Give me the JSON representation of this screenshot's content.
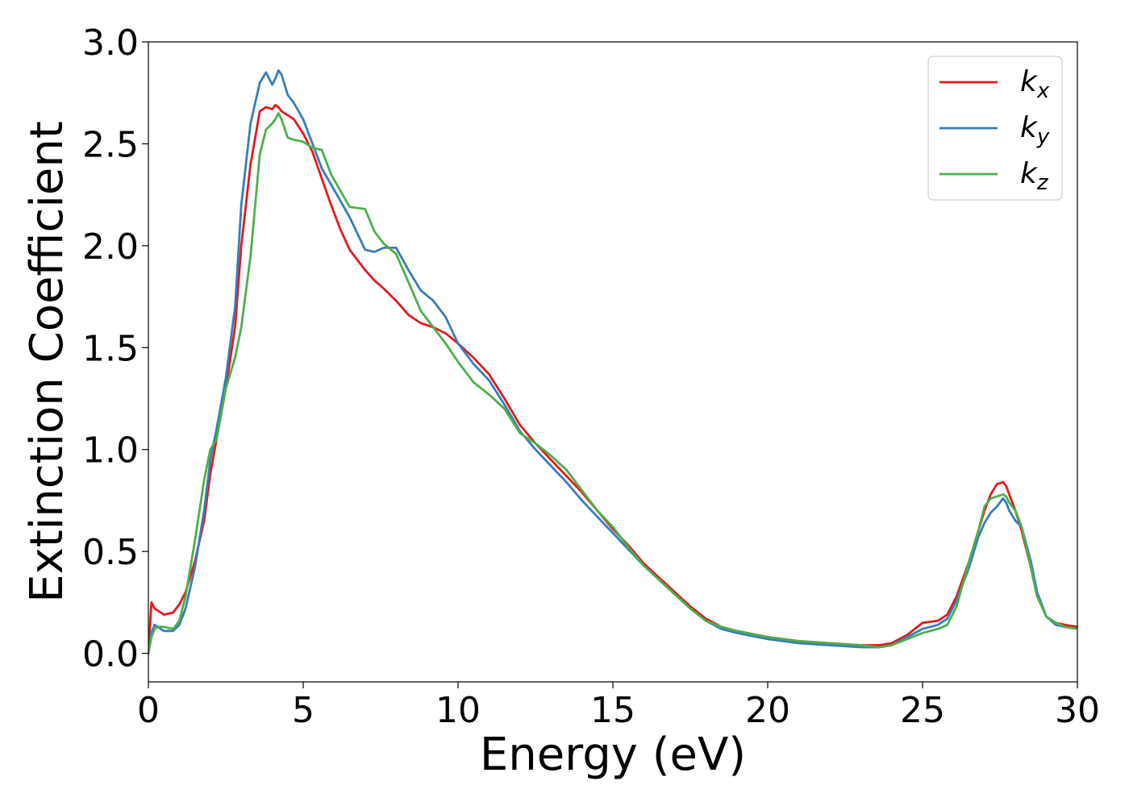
{
  "chart_data": {
    "type": "line",
    "title": "",
    "xlabel": "Energy (eV)",
    "ylabel": "Extinction Coefficient",
    "xlim": [
      0,
      30
    ],
    "ylim": [
      -0.14,
      3.0
    ],
    "xticks": [
      0,
      5,
      10,
      15,
      20,
      25,
      30
    ],
    "xtick_labels": [
      "0",
      "5",
      "10",
      "15",
      "20",
      "25",
      "30"
    ],
    "yticks": [
      0.0,
      0.5,
      1.0,
      1.5,
      2.0,
      2.5,
      3.0
    ],
    "ytick_labels": [
      "0.0",
      "0.5",
      "1.0",
      "1.5",
      "2.0",
      "2.5",
      "3.0"
    ],
    "grid": false,
    "legend_position": "top-right",
    "series": [
      {
        "name": "k",
        "subscript": "x",
        "color": "#e41a1c",
        "x": [
          0,
          0.1,
          0.2,
          0.3,
          0.5,
          0.8,
          1.0,
          1.2,
          1.5,
          1.8,
          2.0,
          2.2,
          2.5,
          2.8,
          3.0,
          3.3,
          3.6,
          3.8,
          4.0,
          4.1,
          4.2,
          4.3,
          4.5,
          4.7,
          5.0,
          5.3,
          5.6,
          5.9,
          6.2,
          6.5,
          7.0,
          7.3,
          7.6,
          8.0,
          8.4,
          8.8,
          9.2,
          9.6,
          10.0,
          10.5,
          11.0,
          11.5,
          12.0,
          12.5,
          13.0,
          13.5,
          14.0,
          14.5,
          15.0,
          15.5,
          16.0,
          16.5,
          17.0,
          17.5,
          18.0,
          18.5,
          19.0,
          20.0,
          21.0,
          22.0,
          23.0,
          23.6,
          24.0,
          24.5,
          25.0,
          25.5,
          25.8,
          26.1,
          26.5,
          26.8,
          27.0,
          27.2,
          27.4,
          27.6,
          27.7,
          27.8,
          28.0,
          28.2,
          28.5,
          28.7,
          29.0,
          29.3,
          29.6,
          30.0
        ],
        "y": [
          0.0,
          0.25,
          0.22,
          0.21,
          0.19,
          0.2,
          0.24,
          0.3,
          0.45,
          0.65,
          0.88,
          1.05,
          1.3,
          1.6,
          2.0,
          2.4,
          2.66,
          2.68,
          2.67,
          2.69,
          2.68,
          2.66,
          2.64,
          2.62,
          2.55,
          2.46,
          2.33,
          2.2,
          2.08,
          1.98,
          1.88,
          1.83,
          1.79,
          1.73,
          1.66,
          1.62,
          1.6,
          1.57,
          1.52,
          1.45,
          1.37,
          1.25,
          1.12,
          1.03,
          0.95,
          0.87,
          0.79,
          0.7,
          0.61,
          0.53,
          0.44,
          0.37,
          0.3,
          0.23,
          0.17,
          0.13,
          0.11,
          0.08,
          0.06,
          0.05,
          0.04,
          0.04,
          0.05,
          0.09,
          0.15,
          0.16,
          0.19,
          0.28,
          0.45,
          0.6,
          0.7,
          0.78,
          0.83,
          0.84,
          0.82,
          0.78,
          0.7,
          0.6,
          0.42,
          0.28,
          0.18,
          0.15,
          0.14,
          0.13
        ]
      },
      {
        "name": "k",
        "subscript": "y",
        "color": "#377eb8",
        "x": [
          0,
          0.1,
          0.2,
          0.3,
          0.5,
          0.8,
          1.0,
          1.2,
          1.5,
          1.8,
          2.0,
          2.2,
          2.5,
          2.8,
          3.0,
          3.3,
          3.6,
          3.8,
          4.0,
          4.1,
          4.2,
          4.3,
          4.5,
          4.7,
          5.0,
          5.3,
          5.6,
          5.9,
          6.2,
          6.5,
          7.0,
          7.3,
          7.6,
          8.0,
          8.4,
          8.8,
          9.2,
          9.6,
          10.0,
          10.5,
          11.0,
          11.5,
          12.0,
          12.5,
          13.0,
          13.5,
          14.0,
          14.5,
          15.0,
          15.5,
          16.0,
          16.5,
          17.0,
          17.5,
          18.0,
          18.5,
          19.0,
          20.0,
          21.0,
          22.0,
          23.0,
          23.6,
          24.0,
          24.5,
          25.0,
          25.5,
          25.8,
          26.1,
          26.5,
          26.8,
          27.0,
          27.2,
          27.4,
          27.6,
          27.7,
          27.8,
          28.0,
          28.2,
          28.5,
          28.7,
          29.0,
          29.3,
          29.6,
          30.0
        ],
        "y": [
          0.0,
          0.1,
          0.14,
          0.13,
          0.11,
          0.11,
          0.14,
          0.22,
          0.42,
          0.7,
          0.95,
          1.1,
          1.35,
          1.7,
          2.2,
          2.6,
          2.8,
          2.85,
          2.79,
          2.82,
          2.86,
          2.84,
          2.74,
          2.7,
          2.62,
          2.5,
          2.38,
          2.3,
          2.22,
          2.14,
          1.98,
          1.97,
          1.99,
          1.99,
          1.88,
          1.78,
          1.73,
          1.65,
          1.52,
          1.42,
          1.34,
          1.22,
          1.09,
          1.0,
          0.92,
          0.84,
          0.75,
          0.67,
          0.59,
          0.51,
          0.43,
          0.36,
          0.29,
          0.22,
          0.16,
          0.12,
          0.1,
          0.07,
          0.05,
          0.04,
          0.03,
          0.03,
          0.04,
          0.08,
          0.12,
          0.14,
          0.17,
          0.26,
          0.42,
          0.57,
          0.64,
          0.69,
          0.72,
          0.76,
          0.74,
          0.7,
          0.65,
          0.62,
          0.45,
          0.3,
          0.18,
          0.14,
          0.13,
          0.12
        ]
      },
      {
        "name": "k",
        "subscript": "z",
        "color": "#4daf4a",
        "x": [
          0,
          0.1,
          0.2,
          0.3,
          0.5,
          0.8,
          1.0,
          1.2,
          1.5,
          1.8,
          2.0,
          2.2,
          2.5,
          2.8,
          3.0,
          3.3,
          3.6,
          3.8,
          4.0,
          4.1,
          4.2,
          4.3,
          4.5,
          4.7,
          5.0,
          5.3,
          5.6,
          5.9,
          6.2,
          6.5,
          7.0,
          7.3,
          7.6,
          8.0,
          8.4,
          8.8,
          9.2,
          9.6,
          10.0,
          10.5,
          11.0,
          11.5,
          12.0,
          12.5,
          13.0,
          13.5,
          14.0,
          14.5,
          15.0,
          15.5,
          16.0,
          16.5,
          17.0,
          17.5,
          18.0,
          18.5,
          19.0,
          20.0,
          21.0,
          22.0,
          23.0,
          23.6,
          24.0,
          24.5,
          25.0,
          25.5,
          25.8,
          26.1,
          26.5,
          26.8,
          27.0,
          27.2,
          27.4,
          27.6,
          27.7,
          27.8,
          28.0,
          28.2,
          28.5,
          28.7,
          29.0,
          29.3,
          29.6,
          30.0
        ],
        "y": [
          0.0,
          0.08,
          0.12,
          0.13,
          0.13,
          0.12,
          0.16,
          0.28,
          0.55,
          0.85,
          1.0,
          1.05,
          1.3,
          1.45,
          1.6,
          1.95,
          2.45,
          2.57,
          2.6,
          2.62,
          2.65,
          2.62,
          2.53,
          2.52,
          2.51,
          2.48,
          2.47,
          2.35,
          2.27,
          2.19,
          2.18,
          2.07,
          2.01,
          1.96,
          1.82,
          1.68,
          1.6,
          1.52,
          1.43,
          1.33,
          1.27,
          1.2,
          1.08,
          1.03,
          0.97,
          0.9,
          0.8,
          0.7,
          0.62,
          0.52,
          0.43,
          0.36,
          0.29,
          0.22,
          0.16,
          0.13,
          0.11,
          0.08,
          0.06,
          0.05,
          0.04,
          0.03,
          0.04,
          0.07,
          0.1,
          0.12,
          0.14,
          0.23,
          0.45,
          0.6,
          0.72,
          0.76,
          0.77,
          0.78,
          0.77,
          0.74,
          0.7,
          0.62,
          0.42,
          0.28,
          0.18,
          0.15,
          0.13,
          0.12
        ]
      }
    ]
  }
}
